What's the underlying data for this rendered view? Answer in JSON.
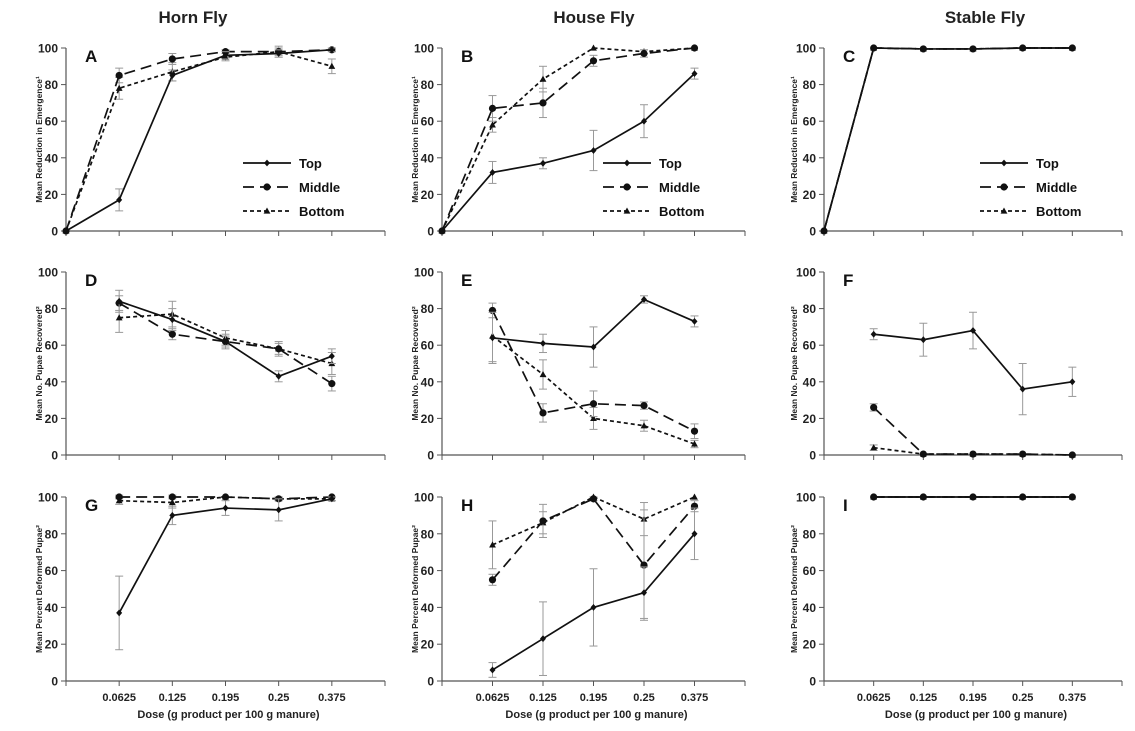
{
  "chart_data": {
    "type": "line",
    "column_titles": [
      "Horn Fly",
      "House Fly",
      "Stable Fly"
    ],
    "row_ylabels": [
      "Mean Reduction in Emergence¹",
      "Mean No. Pupae Recovered²",
      "Mean Percent Deformed Pupae²"
    ],
    "xlabel": "Dose (g product per 100 g manure)",
    "x_tick_labels": [
      "0.0625",
      "0.125",
      "0.195",
      "0.25",
      "0.375"
    ],
    "y_ticks": [
      "0",
      "20",
      "40",
      "60",
      "80",
      "100"
    ],
    "ylim": [
      0,
      100
    ],
    "grid": false,
    "legend": {
      "entries": [
        "Top",
        "Middle",
        "Bottom"
      ],
      "location": "lower-right",
      "panels": [
        "A",
        "B",
        "C"
      ]
    },
    "panels": [
      {
        "label": "A",
        "x": [
          "0",
          "0.0625",
          "0.125",
          "0.195",
          "0.25",
          "0.375"
        ],
        "series": [
          {
            "name": "Top",
            "values": [
              0,
              17,
              85,
              96,
              97,
              99
            ],
            "err": [
              0,
              6,
              3,
              2,
              2,
              1
            ]
          },
          {
            "name": "Middle",
            "values": [
              0,
              85,
              94,
              98,
              98,
              99
            ],
            "err": [
              0,
              4,
              3,
              1,
              2,
              1
            ]
          },
          {
            "name": "Bottom",
            "values": [
              0,
              78,
              87,
              95,
              98,
              90
            ],
            "err": [
              0,
              6,
              5,
              2,
              3,
              4
            ]
          }
        ]
      },
      {
        "label": "B",
        "x": [
          "0",
          "0.0625",
          "0.125",
          "0.195",
          "0.25",
          "0.375"
        ],
        "series": [
          {
            "name": "Top",
            "values": [
              0,
              32,
              37,
              44,
              60,
              86
            ],
            "err": [
              0,
              6,
              3,
              11,
              9,
              3
            ]
          },
          {
            "name": "Middle",
            "values": [
              0,
              67,
              70,
              93,
              97,
              100
            ],
            "err": [
              0,
              7,
              8,
              3,
              2,
              0
            ]
          },
          {
            "name": "Bottom",
            "values": [
              0,
              58,
              83,
              100,
              98,
              100
            ],
            "err": [
              0,
              4,
              7,
              0,
              1,
              0
            ]
          }
        ]
      },
      {
        "label": "C",
        "x": [
          "0",
          "0.0625",
          "0.125",
          "0.195",
          "0.25",
          "0.375"
        ],
        "series": [
          {
            "name": "Top",
            "values": [
              0,
              100,
              99.5,
              99.5,
              100,
              100
            ],
            "err": [
              0,
              0,
              0,
              0,
              0,
              0
            ]
          },
          {
            "name": "Middle",
            "values": [
              0,
              100,
              99.5,
              99.5,
              100,
              100
            ],
            "err": [
              0,
              0,
              0,
              0,
              0,
              0
            ]
          },
          {
            "name": "Bottom",
            "values": [
              0,
              100,
              99.5,
              99.5,
              100,
              100
            ],
            "err": [
              0,
              0,
              0,
              0,
              0,
              0
            ]
          }
        ]
      },
      {
        "label": "D",
        "x": [
          "0.0625",
          "0.125",
          "0.195",
          "0.25",
          "0.375"
        ],
        "series": [
          {
            "name": "Top",
            "values": [
              84,
              74,
              62,
              43,
              54
            ],
            "err": [
              6,
              6,
              4,
              3,
              4
            ]
          },
          {
            "name": "Middle",
            "values": [
              83,
              66,
              62,
              58,
              39
            ],
            "err": [
              4,
              3,
              3,
              3,
              4
            ]
          },
          {
            "name": "Bottom",
            "values": [
              75,
              77,
              64,
              58,
              50
            ],
            "err": [
              8,
              7,
              4,
              4,
              6
            ]
          }
        ]
      },
      {
        "label": "E",
        "x": [
          "0.0625",
          "0.125",
          "0.195",
          "0.25",
          "0.375"
        ],
        "series": [
          {
            "name": "Top",
            "values": [
              64,
              61,
              59,
              85,
              73
            ],
            "err": [
              14,
              5,
              11,
              2,
              3
            ]
          },
          {
            "name": "Middle",
            "values": [
              79,
              23,
              28,
              27,
              13
            ],
            "err": [
              4,
              5,
              7,
              2,
              4
            ]
          },
          {
            "name": "Bottom",
            "values": [
              65,
              44,
              20,
              16,
              6
            ],
            "err": [
              14,
              8,
              6,
              3,
              2
            ]
          }
        ]
      },
      {
        "label": "F",
        "x": [
          "0.0625",
          "0.125",
          "0.195",
          "0.25",
          "0.375"
        ],
        "series": [
          {
            "name": "Top",
            "values": [
              66,
              63,
              68,
              36,
              40
            ],
            "err": [
              3,
              9,
              10,
              14,
              8
            ]
          },
          {
            "name": "Middle",
            "values": [
              26,
              0.5,
              0.5,
              0.5,
              0
            ],
            "err": [
              2,
              0.5,
              0.5,
              0.5,
              0
            ]
          },
          {
            "name": "Bottom",
            "values": [
              4,
              0.5,
              0.5,
              0.5,
              0
            ],
            "err": [
              1.5,
              0.5,
              0.5,
              0.5,
              0
            ]
          }
        ]
      },
      {
        "label": "G",
        "x": [
          "0.0625",
          "0.125",
          "0.195",
          "0.25",
          "0.375"
        ],
        "series": [
          {
            "name": "Top",
            "values": [
              37,
              90,
              94,
              93,
              99
            ],
            "err": [
              20,
              5,
              4,
              6,
              1
            ]
          },
          {
            "name": "Middle",
            "values": [
              100,
              100,
              100,
              99,
              100
            ],
            "err": [
              1,
              1,
              0,
              1,
              0
            ]
          },
          {
            "name": "Bottom",
            "values": [
              98,
              97,
              100,
              99,
              99
            ],
            "err": [
              2,
              3,
              0,
              1,
              1
            ]
          }
        ]
      },
      {
        "label": "H",
        "x": [
          "0.0625",
          "0.125",
          "0.195",
          "0.25",
          "0.375"
        ],
        "series": [
          {
            "name": "Top",
            "values": [
              6,
              23,
              40,
              48,
              80
            ],
            "err": [
              4,
              20,
              21,
              14,
              14
            ]
          },
          {
            "name": "Middle",
            "values": [
              55,
              87,
              99,
              63,
              95
            ],
            "err": [
              3,
              9,
              1,
              30,
              3
            ]
          },
          {
            "name": "Bottom",
            "values": [
              74,
              86,
              100,
              88,
              100
            ],
            "err": [
              13,
              6,
              0,
              9,
              0
            ]
          }
        ]
      },
      {
        "label": "I",
        "x": [
          "0.0625",
          "0.125",
          "0.195",
          "0.25",
          "0.375"
        ],
        "series": [
          {
            "name": "Top",
            "values": [
              100,
              100,
              100,
              100,
              100
            ],
            "err": [
              0,
              0,
              0,
              0,
              0
            ]
          },
          {
            "name": "Middle",
            "values": [
              100,
              100,
              100,
              100,
              100
            ],
            "err": [
              0,
              0,
              0,
              0,
              0
            ]
          },
          {
            "name": "Bottom",
            "values": [
              100,
              100,
              100,
              100,
              100
            ],
            "err": [
              0,
              0,
              0,
              0,
              0
            ]
          }
        ]
      }
    ]
  }
}
